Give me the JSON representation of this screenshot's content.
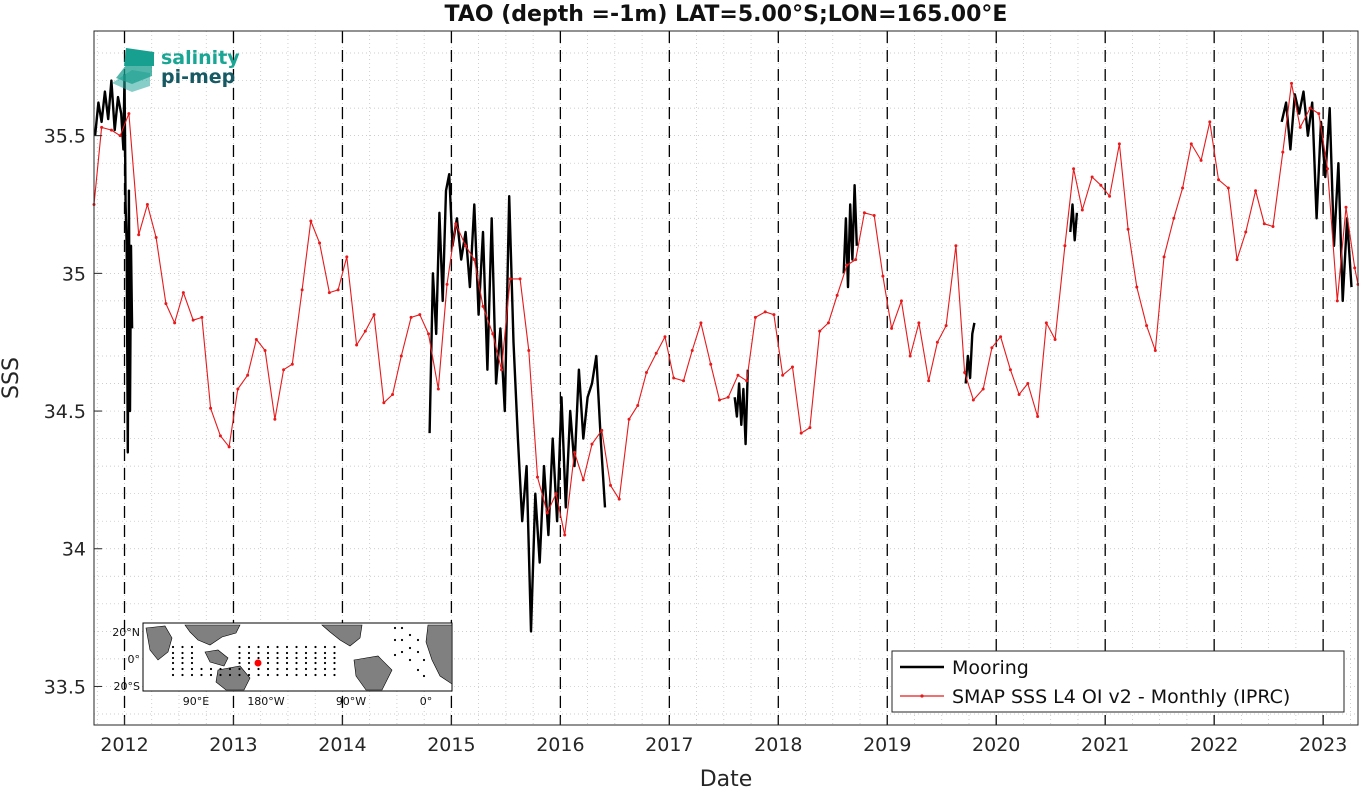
{
  "chart_data": {
    "type": "line",
    "title": "TAO (depth =-1m) LAT=5.00°S;LON=165.00°E",
    "xlabel": "Date",
    "ylabel": "SSS",
    "xlim": [
      2011.72,
      2023.32
    ],
    "ylim": [
      33.36,
      35.88
    ],
    "yticks": [
      33.5,
      34,
      34.5,
      35,
      35.5
    ],
    "ytick_labels": [
      "33.5",
      "34",
      "34.5",
      "35",
      "35.5"
    ],
    "xticks": [
      2012,
      2013,
      2014,
      2015,
      2016,
      2017,
      2018,
      2019,
      2020,
      2021,
      2022,
      2023
    ],
    "xtick_labels": [
      "2012",
      "2013",
      "2014",
      "2015",
      "2016",
      "2017",
      "2018",
      "2019",
      "2020",
      "2021",
      "2022",
      "2023"
    ],
    "grid": "dotted",
    "year_markers": "dashed vertical lines at each year",
    "legend": {
      "position": "bottom-right",
      "entries": [
        "Mooring",
        "SMAP SSS L4 OI v2 - Monthly (IPRC)"
      ]
    },
    "series": [
      {
        "name": "Mooring",
        "color": "#000000",
        "style": "line",
        "segments": [
          {
            "x": [
              2011.73,
              2011.76,
              2011.79,
              2011.82,
              2011.85,
              2011.88,
              2011.91,
              2011.94,
              2011.97,
              2011.99,
              2012.0,
              2012.01,
              2012.02,
              2012.03,
              2012.04,
              2012.05,
              2012.06,
              2012.07
            ],
            "y": [
              35.5,
              35.62,
              35.55,
              35.66,
              35.56,
              35.7,
              35.52,
              35.64,
              35.58,
              35.45,
              35.72,
              35.25,
              35.1,
              34.35,
              35.3,
              34.5,
              35.1,
              34.8
            ]
          },
          {
            "x": [
              2014.8,
              2014.83,
              2014.86,
              2014.89,
              2014.92,
              2014.95,
              2014.98,
              2015.01,
              2015.05,
              2015.09,
              2015.13,
              2015.17,
              2015.21,
              2015.25,
              2015.29,
              2015.33,
              2015.37,
              2015.41,
              2015.45,
              2015.49,
              2015.53,
              2015.57,
              2015.61,
              2015.65,
              2015.69,
              2015.73,
              2015.77,
              2015.81,
              2015.85,
              2015.89,
              2015.93,
              2015.97,
              2016.01,
              2016.05,
              2016.09,
              2016.13,
              2016.17,
              2016.21,
              2016.25,
              2016.29,
              2016.33,
              2016.37,
              2016.41
            ],
            "y": [
              34.42,
              35.0,
              34.78,
              35.22,
              34.9,
              35.3,
              35.36,
              35.1,
              35.2,
              35.05,
              35.15,
              34.95,
              35.25,
              34.85,
              35.15,
              34.65,
              35.2,
              34.6,
              34.8,
              34.5,
              35.28,
              34.75,
              34.4,
              34.1,
              34.3,
              33.7,
              34.2,
              33.95,
              34.3,
              34.05,
              34.4,
              34.1,
              34.55,
              34.15,
              34.5,
              34.3,
              34.65,
              34.4,
              34.55,
              34.6,
              34.7,
              34.4,
              34.15
            ]
          },
          {
            "x": [
              2017.6,
              2017.62,
              2017.64,
              2017.66,
              2017.68,
              2017.7,
              2017.72
            ],
            "y": [
              34.55,
              34.48,
              34.6,
              34.45,
              34.58,
              34.38,
              34.65
            ]
          },
          {
            "x": [
              2018.6,
              2018.62,
              2018.64,
              2018.66,
              2018.68,
              2018.7,
              2018.72
            ],
            "y": [
              35.0,
              35.2,
              34.95,
              35.25,
              35.05,
              35.32,
              35.1
            ]
          },
          {
            "x": [
              2019.72,
              2019.74,
              2019.76,
              2019.78,
              2019.8
            ],
            "y": [
              34.6,
              34.7,
              34.62,
              34.78,
              34.82
            ]
          },
          {
            "x": [
              2020.68,
              2020.7,
              2020.72,
              2020.74
            ],
            "y": [
              35.15,
              35.25,
              35.12,
              35.22
            ]
          },
          {
            "x": [
              2022.62,
              2022.66,
              2022.7,
              2022.74,
              2022.78,
              2022.82,
              2022.86,
              2022.9,
              2022.94,
              2022.98,
              2023.02,
              2023.06,
              2023.1,
              2023.14,
              2023.18,
              2023.22,
              2023.26
            ],
            "y": [
              35.55,
              35.62,
              35.45,
              35.65,
              35.58,
              35.66,
              35.5,
              35.62,
              35.2,
              35.55,
              35.35,
              35.6,
              35.1,
              35.4,
              34.9,
              35.2,
              34.95
            ]
          }
        ]
      },
      {
        "name": "SMAP SSS L4 OI v2 - Monthly (IPRC)",
        "color": "#e8191b",
        "style": "line-dot",
        "x": [
          2011.72,
          2011.79,
          2011.88,
          2011.96,
          2012.04,
          2012.13,
          2012.21,
          2012.29,
          2012.38,
          2012.46,
          2012.54,
          2012.63,
          2012.71,
          2012.79,
          2012.88,
          2012.96,
          2013.04,
          2013.13,
          2013.21,
          2013.29,
          2013.38,
          2013.46,
          2013.54,
          2013.63,
          2013.71,
          2013.79,
          2013.88,
          2013.96,
          2014.04,
          2014.13,
          2014.21,
          2014.29,
          2014.38,
          2014.46,
          2014.54,
          2014.63,
          2014.71,
          2014.79,
          2014.88,
          2014.96,
          2015.04,
          2015.13,
          2015.21,
          2015.29,
          2015.38,
          2015.46,
          2015.54,
          2015.63,
          2015.71,
          2015.79,
          2015.88,
          2015.96,
          2016.04,
          2016.13,
          2016.21,
          2016.29,
          2016.38,
          2016.46,
          2016.54,
          2016.63,
          2016.71,
          2016.79,
          2016.88,
          2016.96,
          2017.04,
          2017.13,
          2017.21,
          2017.29,
          2017.38,
          2017.46,
          2017.54,
          2017.63,
          2017.71,
          2017.79,
          2017.88,
          2017.96,
          2018.04,
          2018.13,
          2018.21,
          2018.29,
          2018.38,
          2018.46,
          2018.54,
          2018.63,
          2018.71,
          2018.79,
          2018.88,
          2018.96,
          2019.04,
          2019.13,
          2019.21,
          2019.29,
          2019.38,
          2019.46,
          2019.54,
          2019.63,
          2019.71,
          2019.79,
          2019.88,
          2019.96,
          2020.04,
          2020.13,
          2020.21,
          2020.29,
          2020.38,
          2020.46,
          2020.54,
          2020.63,
          2020.71,
          2020.79,
          2020.88,
          2020.96,
          2021.04,
          2021.13,
          2021.21,
          2021.29,
          2021.38,
          2021.46,
          2021.54,
          2021.63,
          2021.71,
          2021.79,
          2021.88,
          2021.96,
          2022.04,
          2022.13,
          2022.21,
          2022.29,
          2022.38,
          2022.46,
          2022.54,
          2022.63,
          2022.71,
          2022.79,
          2022.88,
          2022.96,
          2023.04,
          2023.13,
          2023.21,
          2023.29,
          2023.32
        ],
        "y": [
          35.25,
          35.53,
          35.52,
          35.5,
          35.58,
          35.14,
          35.25,
          35.13,
          34.89,
          34.82,
          34.93,
          34.83,
          34.84,
          34.51,
          34.41,
          34.37,
          34.58,
          34.63,
          34.76,
          34.72,
          34.47,
          34.65,
          34.67,
          34.94,
          35.19,
          35.11,
          34.93,
          34.94,
          35.06,
          34.74,
          34.79,
          34.85,
          34.53,
          34.56,
          34.7,
          34.84,
          34.85,
          34.78,
          34.58,
          34.96,
          35.18,
          35.1,
          35.05,
          34.88,
          34.78,
          34.65,
          34.98,
          34.98,
          34.72,
          34.26,
          34.13,
          34.2,
          34.05,
          34.35,
          34.25,
          34.38,
          34.43,
          34.23,
          34.18,
          34.47,
          34.52,
          34.64,
          34.71,
          34.77,
          34.62,
          34.61,
          34.72,
          34.82,
          34.67,
          34.54,
          34.55,
          34.63,
          34.61,
          34.84,
          34.86,
          34.85,
          34.63,
          34.66,
          34.42,
          34.44,
          34.79,
          34.82,
          34.92,
          35.03,
          35.05,
          35.22,
          35.21,
          34.99,
          34.8,
          34.9,
          34.7,
          34.82,
          34.61,
          34.75,
          34.81,
          35.1,
          34.64,
          34.54,
          34.58,
          34.73,
          34.77,
          34.65,
          34.56,
          34.6,
          34.48,
          34.82,
          34.76,
          35.1,
          35.38,
          35.23,
          35.35,
          35.32,
          35.28,
          35.47,
          35.16,
          34.95,
          34.81,
          34.72,
          35.06,
          35.2,
          35.31,
          35.47,
          35.41,
          35.55,
          35.34,
          35.31,
          35.05,
          35.15,
          35.3,
          35.18,
          35.17,
          35.44,
          35.69,
          35.53,
          35.6,
          35.58,
          35.38,
          34.9,
          35.24,
          35.02,
          34.96
        ]
      }
    ]
  },
  "logo": {
    "line1": "salinity",
    "line2": "pi-mep"
  },
  "inset_map": {
    "lat_labels": [
      "20°N",
      "0°",
      "20°S"
    ],
    "lon_labels": [
      "90°E",
      "180°W",
      "90°W",
      "0°"
    ],
    "land_color": "#808080",
    "marker_color": "#ff0000"
  }
}
